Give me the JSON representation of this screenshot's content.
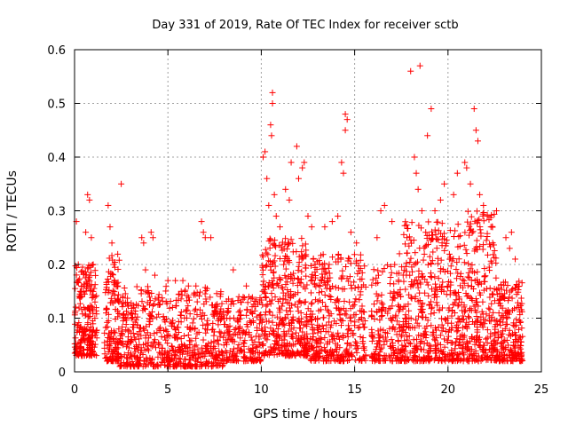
{
  "chart_data": {
    "type": "scatter",
    "title": "Day 331 of 2019, Rate Of TEC Index for receiver sctb",
    "xlabel": "GPS time / hours",
    "ylabel": "ROTI / TECUs",
    "xlim": [
      0,
      24
    ],
    "ylim": [
      0,
      0.6
    ],
    "xticks": [
      0,
      5,
      10,
      15,
      20,
      25
    ],
    "xtick_labels": [
      "0",
      "5",
      "10",
      "15",
      "20",
      "25"
    ],
    "yticks": [
      0,
      0.1,
      0.2,
      0.3,
      0.4,
      0.5,
      0.6
    ],
    "ytick_labels": [
      "0",
      "0.1",
      "0.2",
      "0.3",
      "0.4",
      "0.5",
      "0.6"
    ],
    "grid": true,
    "marker": "plus",
    "color": "#ff0000",
    "series": [
      {
        "points": [
          [
            0.1,
            0.28
          ],
          [
            0.2,
            0.2
          ],
          [
            0.3,
            0.15
          ],
          [
            0.5,
            0.12
          ],
          [
            0.7,
            0.33
          ],
          [
            0.8,
            0.32
          ],
          [
            0.9,
            0.25
          ],
          [
            1.0,
            0.2
          ],
          [
            1.0,
            0.14
          ],
          [
            0.6,
            0.26
          ],
          [
            1.8,
            0.31
          ],
          [
            1.9,
            0.27
          ],
          [
            2.0,
            0.24
          ],
          [
            2.1,
            0.2
          ],
          [
            2.5,
            0.35
          ],
          [
            2.3,
            0.16
          ],
          [
            3.6,
            0.25
          ],
          [
            3.7,
            0.24
          ],
          [
            4.1,
            0.26
          ],
          [
            4.2,
            0.25
          ],
          [
            3.8,
            0.19
          ],
          [
            4.3,
            0.18
          ],
          [
            5.0,
            0.17
          ],
          [
            5.4,
            0.17
          ],
          [
            5.8,
            0.17
          ],
          [
            6.1,
            0.16
          ],
          [
            6.5,
            0.16
          ],
          [
            6.9,
            0.26
          ],
          [
            7.0,
            0.25
          ],
          [
            7.3,
            0.25
          ],
          [
            6.8,
            0.28
          ],
          [
            8.5,
            0.19
          ],
          [
            8.8,
            0.14
          ],
          [
            9.2,
            0.16
          ],
          [
            10.1,
            0.4
          ],
          [
            10.2,
            0.41
          ],
          [
            10.3,
            0.36
          ],
          [
            10.4,
            0.31
          ],
          [
            10.6,
            0.52
          ],
          [
            10.6,
            0.5
          ],
          [
            10.5,
            0.46
          ],
          [
            10.55,
            0.44
          ],
          [
            10.7,
            0.33
          ],
          [
            10.8,
            0.29
          ],
          [
            11.0,
            0.27
          ],
          [
            11.3,
            0.34
          ],
          [
            11.5,
            0.32
          ],
          [
            11.6,
            0.39
          ],
          [
            11.9,
            0.42
          ],
          [
            12.0,
            0.36
          ],
          [
            12.2,
            0.38
          ],
          [
            12.3,
            0.39
          ],
          [
            12.5,
            0.29
          ],
          [
            12.7,
            0.27
          ],
          [
            13.4,
            0.27
          ],
          [
            13.8,
            0.28
          ],
          [
            14.1,
            0.29
          ],
          [
            14.3,
            0.39
          ],
          [
            14.4,
            0.37
          ],
          [
            14.5,
            0.48
          ],
          [
            14.6,
            0.47
          ],
          [
            14.5,
            0.45
          ],
          [
            14.8,
            0.26
          ],
          [
            15.1,
            0.24
          ],
          [
            16.2,
            0.25
          ],
          [
            16.4,
            0.3
          ],
          [
            16.6,
            0.31
          ],
          [
            17.0,
            0.28
          ],
          [
            17.4,
            0.22
          ],
          [
            17.8,
            0.25
          ],
          [
            18.0,
            0.56
          ],
          [
            18.2,
            0.4
          ],
          [
            18.3,
            0.37
          ],
          [
            18.4,
            0.34
          ],
          [
            18.5,
            0.57
          ],
          [
            18.6,
            0.3
          ],
          [
            18.9,
            0.44
          ],
          [
            19.1,
            0.49
          ],
          [
            19.3,
            0.3
          ],
          [
            19.6,
            0.32
          ],
          [
            19.8,
            0.35
          ],
          [
            20.3,
            0.33
          ],
          [
            20.5,
            0.37
          ],
          [
            20.9,
            0.39
          ],
          [
            21.0,
            0.38
          ],
          [
            21.2,
            0.35
          ],
          [
            21.4,
            0.49
          ],
          [
            21.5,
            0.45
          ],
          [
            21.6,
            0.43
          ],
          [
            21.7,
            0.33
          ],
          [
            21.9,
            0.31
          ],
          [
            22.1,
            0.29
          ],
          [
            22.3,
            0.27
          ],
          [
            22.6,
            0.3
          ],
          [
            23.1,
            0.25
          ],
          [
            23.3,
            0.23
          ],
          [
            23.4,
            0.26
          ],
          [
            23.6,
            0.21
          ],
          [
            23.8,
            0.12
          ]
        ],
        "bands": [
          {
            "x": [
              0.0,
              1.2
            ],
            "ymin": 0.03,
            "ymax": 0.2,
            "n": 220
          },
          {
            "x": [
              1.6,
              2.4
            ],
            "ymin": 0.02,
            "ymax": 0.22,
            "n": 140
          },
          {
            "x": [
              2.4,
              8.0
            ],
            "ymin": 0.01,
            "ymax": 0.16,
            "n": 620
          },
          {
            "x": [
              8.0,
              10.0
            ],
            "ymin": 0.02,
            "ymax": 0.14,
            "n": 200
          },
          {
            "x": [
              10.0,
              12.5
            ],
            "ymin": 0.03,
            "ymax": 0.25,
            "n": 380
          },
          {
            "x": [
              12.5,
              15.6
            ],
            "ymin": 0.02,
            "ymax": 0.22,
            "n": 380
          },
          {
            "x": [
              15.9,
              17.6
            ],
            "ymin": 0.02,
            "ymax": 0.2,
            "n": 200
          },
          {
            "x": [
              17.6,
              21.0
            ],
            "ymin": 0.02,
            "ymax": 0.28,
            "n": 480
          },
          {
            "x": [
              21.0,
              22.6
            ],
            "ymin": 0.02,
            "ymax": 0.3,
            "n": 260
          },
          {
            "x": [
              22.6,
              24.0
            ],
            "ymin": 0.02,
            "ymax": 0.17,
            "n": 200
          }
        ]
      }
    ]
  }
}
